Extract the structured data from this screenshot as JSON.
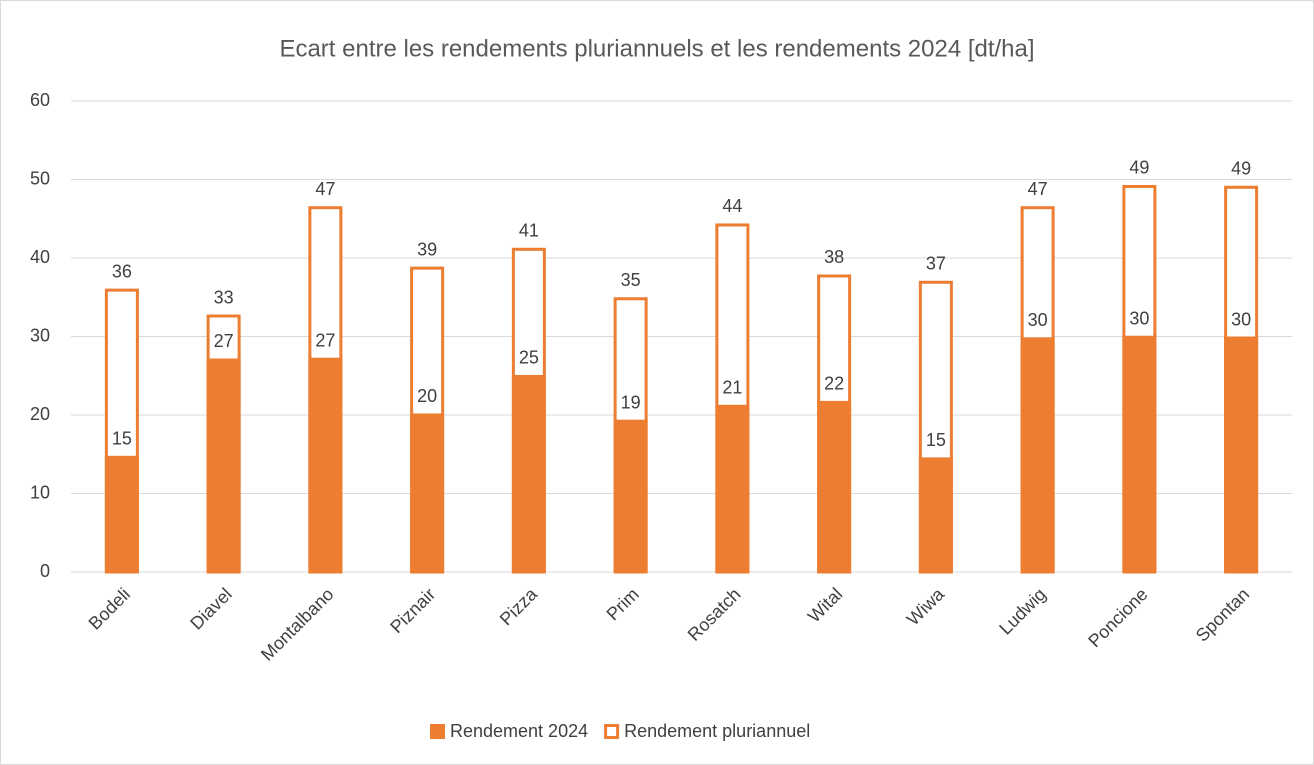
{
  "chart_data": {
    "type": "bar",
    "title": "Ecart entre les rendements pluriannuels et les rendements 2024 [dt/ha]",
    "categories": [
      "Bodeli",
      "Diavel",
      "Montalbano",
      "Piznair",
      "Pizza",
      "Prim",
      "Rosatch",
      "Wital",
      "Wiwa",
      "Ludwig",
      "Poncione",
      "Spontan"
    ],
    "series": [
      {
        "name": "Rendement 2024",
        "color": "#ed7d31",
        "style": "filled",
        "values": [
          14.8,
          27.2,
          27.3,
          20.2,
          25.1,
          19.4,
          21.3,
          21.8,
          14.6,
          29.9,
          30.1,
          30.0
        ],
        "value_labels": [
          "15",
          "27",
          "27",
          "20",
          "25",
          "19",
          "21",
          "22",
          "15",
          "30",
          "30",
          "30"
        ]
      },
      {
        "name": "Rendement pluriannuel",
        "color": "#ed7d31",
        "style": "outline",
        "values": [
          36.1,
          32.8,
          46.6,
          38.9,
          41.3,
          35.0,
          44.4,
          37.9,
          37.1,
          46.6,
          49.3,
          49.2
        ],
        "value_labels": [
          "36",
          "33",
          "47",
          "39",
          "41",
          "35",
          "44",
          "38",
          "37",
          "47",
          "49",
          "49"
        ]
      }
    ],
    "overlap": true,
    "ylim": [
      0,
      60
    ],
    "yticks": [
      0,
      10,
      20,
      30,
      40,
      50,
      60
    ],
    "grid": true,
    "legend": "bottom"
  }
}
